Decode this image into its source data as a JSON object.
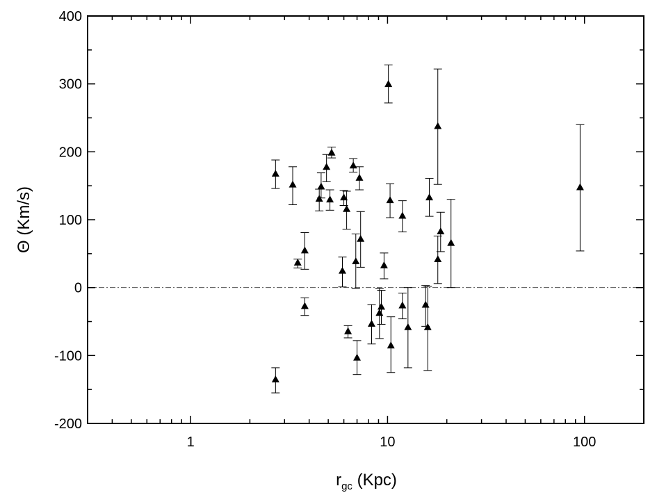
{
  "chart_data": {
    "type": "scatter",
    "title": "",
    "xlabel": {
      "main": "r",
      "sub": "gc",
      "rest": " (Kpc)"
    },
    "ylabel": {
      "symbol": "Θ",
      "rest": " (Km/s)"
    },
    "xscale": "log",
    "xlim": [
      0.3,
      200
    ],
    "ylim": [
      -200,
      400
    ],
    "x_ticks": [
      {
        "value": 1,
        "label": "1"
      },
      {
        "value": 10,
        "label": "10"
      },
      {
        "value": 100,
        "label": "100"
      }
    ],
    "y_ticks": [
      {
        "value": -200,
        "label": "-200"
      },
      {
        "value": -100,
        "label": "-100"
      },
      {
        "value": 0,
        "label": "0"
      },
      {
        "value": 100,
        "label": "100"
      },
      {
        "value": 200,
        "label": "200"
      },
      {
        "value": 300,
        "label": "300"
      },
      {
        "value": 400,
        "label": "400"
      }
    ],
    "reference_line": {
      "y": 0,
      "style": "dash-dot"
    },
    "grid": false,
    "legend": "none",
    "marker": "triangle",
    "marker_color": "#000000",
    "errorbar_color": "#000000",
    "points": [
      {
        "x": 2.7,
        "y": 168,
        "err_low": 22,
        "err_high": 20
      },
      {
        "x": 2.7,
        "y": -135,
        "err_low": 20,
        "err_high": 17
      },
      {
        "x": 3.3,
        "y": 152,
        "err_low": 30,
        "err_high": 26
      },
      {
        "x": 3.5,
        "y": 37,
        "err_low": 8,
        "err_high": 5
      },
      {
        "x": 3.8,
        "y": 55,
        "err_low": 28,
        "err_high": 26
      },
      {
        "x": 3.8,
        "y": -27,
        "err_low": 14,
        "err_high": 12
      },
      {
        "x": 4.5,
        "y": 131,
        "err_low": 18,
        "err_high": 14
      },
      {
        "x": 4.6,
        "y": 149,
        "err_low": 17,
        "err_high": 20
      },
      {
        "x": 4.9,
        "y": 178,
        "err_low": 22,
        "err_high": 18
      },
      {
        "x": 5.1,
        "y": 130,
        "err_low": 16,
        "err_high": 14
      },
      {
        "x": 5.2,
        "y": 199,
        "err_low": 8,
        "err_high": 8
      },
      {
        "x": 5.9,
        "y": 25,
        "err_low": 24,
        "err_high": 20
      },
      {
        "x": 6.0,
        "y": 133,
        "err_low": 12,
        "err_high": 10
      },
      {
        "x": 6.2,
        "y": 116,
        "err_low": 30,
        "err_high": 26
      },
      {
        "x": 6.3,
        "y": -64,
        "err_low": 10,
        "err_high": 8
      },
      {
        "x": 6.7,
        "y": 180,
        "err_low": 10,
        "err_high": 10
      },
      {
        "x": 6.9,
        "y": 39,
        "err_low": 40,
        "err_high": 40
      },
      {
        "x": 7.0,
        "y": -103,
        "err_low": 25,
        "err_high": 25
      },
      {
        "x": 7.2,
        "y": 162,
        "err_low": 18,
        "err_high": 16
      },
      {
        "x": 7.3,
        "y": 72,
        "err_low": 42,
        "err_high": 40
      },
      {
        "x": 8.3,
        "y": -53,
        "err_low": 30,
        "err_high": 28
      },
      {
        "x": 9.1,
        "y": -37,
        "err_low": 38,
        "err_high": 36
      },
      {
        "x": 9.3,
        "y": -28,
        "err_low": 26,
        "err_high": 24
      },
      {
        "x": 9.6,
        "y": 33,
        "err_low": 20,
        "err_high": 18
      },
      {
        "x": 10.1,
        "y": 300,
        "err_low": 28,
        "err_high": 28
      },
      {
        "x": 10.3,
        "y": 129,
        "err_low": 26,
        "err_high": 24
      },
      {
        "x": 10.4,
        "y": -85,
        "err_low": 40,
        "err_high": 42
      },
      {
        "x": 11.9,
        "y": 106,
        "err_low": 24,
        "err_high": 22
      },
      {
        "x": 11.9,
        "y": -26,
        "err_low": 20,
        "err_high": 18
      },
      {
        "x": 12.7,
        "y": -58,
        "err_low": 60,
        "err_high": 58
      },
      {
        "x": 15.6,
        "y": -25,
        "err_low": 32,
        "err_high": 28
      },
      {
        "x": 16.0,
        "y": -58,
        "err_low": 64,
        "err_high": 60
      },
      {
        "x": 16.3,
        "y": 133,
        "err_low": 28,
        "err_high": 28
      },
      {
        "x": 18.0,
        "y": 42,
        "err_low": 36,
        "err_high": 34
      },
      {
        "x": 18.0,
        "y": 238,
        "err_low": 86,
        "err_high": 84
      },
      {
        "x": 18.6,
        "y": 83,
        "err_low": 30,
        "err_high": 28
      },
      {
        "x": 21.0,
        "y": 66,
        "err_low": 66,
        "err_high": 64
      },
      {
        "x": 95.0,
        "y": 148,
        "err_low": 94,
        "err_high": 92
      }
    ]
  }
}
